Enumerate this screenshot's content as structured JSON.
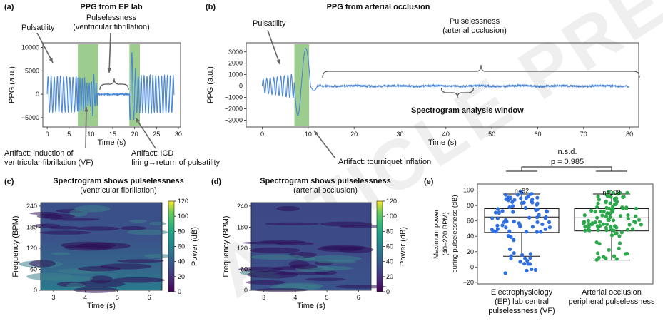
{
  "panel_a": {
    "letter": "(a)",
    "title": "PPG from EP lab",
    "annotation_pulsatility": "Pulsatility",
    "annotation_pulselessness_l1": "Pulselessness",
    "annotation_pulselessness_l2": "(ventricular fibrillation)",
    "artifact_vf_l1": "Artifact: induction of",
    "artifact_vf_l2": "ventricular fibrillation (VF)",
    "artifact_icd_l1": "Artifact: ICD",
    "artifact_icd_l2": "firing→return of pulsatility",
    "chart_data": {
      "type": "line",
      "xlabel": "Time (s)",
      "ylabel": "PPG (a.u.)",
      "xticks": [
        "0",
        "5",
        "10",
        "15",
        "20",
        "25",
        "30"
      ],
      "yticks": [
        "10000",
        "5000",
        "0",
        "−5000"
      ],
      "xlim": [
        -1,
        30.5
      ],
      "ylim": [
        -7000,
        11000
      ],
      "highlight_regions": [
        [
          7,
          11.7
        ],
        [
          18.8,
          21.2
        ]
      ]
    }
  },
  "panel_b": {
    "letter": "(b)",
    "title": "PPG from arterial occlusion",
    "annotation_pulsatility": "Pulsatility",
    "annotation_pulselessness_l1": "Pulselessness",
    "annotation_pulselessness_l2": "(arterial occlusion)",
    "spectrogram_window": "Spectrogram analysis window",
    "artifact_tourniquet": "Artifact: tourniquet inflation",
    "chart_data": {
      "type": "line",
      "xlabel": "Time (s)",
      "ylabel": "PPG (a.u.)",
      "xticks": [
        "0",
        "10",
        "20",
        "30",
        "40",
        "50",
        "60",
        "70",
        "80"
      ],
      "yticks": [
        "3000",
        "2000",
        "1000",
        "0",
        "−1000",
        "−2000",
        "−3000"
      ],
      "xlim": [
        -3.5,
        82
      ],
      "ylim": [
        -3600,
        3800
      ],
      "highlight_regions": [
        [
          7,
          10.2
        ]
      ]
    }
  },
  "panel_c": {
    "letter": "(c)",
    "title": "Spectrogram shows pulselessness",
    "subtitle": "(ventricular fibrillation)",
    "chart_data": {
      "type": "heatmap",
      "xlabel": "Time (s)",
      "ylabel": "Frequency (BPM)",
      "xticks": [
        "3",
        "4",
        "5",
        "6"
      ],
      "yticks": [
        "240",
        "180",
        "120",
        "60",
        "0"
      ],
      "xlim": [
        2.6,
        6.4
      ],
      "ylim": [
        0,
        250
      ],
      "colorbar_label": "Power (dB)",
      "colorbar_ticks": [
        "120",
        "100",
        "80",
        "60",
        "40",
        "20",
        "0"
      ]
    }
  },
  "panel_d": {
    "letter": "(d)",
    "title": "Spectrogram shows pulselessness",
    "subtitle": "(arterial occlusion)",
    "chart_data": {
      "type": "heatmap",
      "xlabel": "Time (s)",
      "ylabel": "Frequency (BPM)",
      "xticks": [
        "3",
        "4",
        "5",
        "6"
      ],
      "yticks": [
        "240",
        "180",
        "120",
        "60",
        "0"
      ],
      "xlim": [
        2.6,
        6.4
      ],
      "ylim": [
        0,
        250
      ],
      "colorbar_label": "Power (dB)",
      "colorbar_ticks": [
        "120",
        "100",
        "80",
        "60",
        "40",
        "20",
        "0"
      ]
    }
  },
  "panel_e": {
    "letter": "(e)",
    "nsd": "n.s.d.",
    "pvalue": "p = 0.985",
    "chart_data": {
      "type": "scatter",
      "ylabel_l1": "Maximum power",
      "ylabel_l2": "(40–220 BPM)",
      "ylabel_l3": "during pulselessness (dB)",
      "yticks": [
        "100",
        "80",
        "60",
        "40",
        "20",
        "0",
        "−20"
      ],
      "ylim": [
        -22,
        108
      ],
      "groups": [
        {
          "n_label": "n=92",
          "label_l1": "Electrophysiology",
          "label_l2": "(EP) lab central",
          "label_l3": "pulselessness (VF)",
          "color": "#2f6fe0",
          "n": 92,
          "whisker_low": 14,
          "q1": 45,
          "median": 65,
          "q3": 76,
          "whisker_high": 95,
          "min": -10,
          "max": 100
        },
        {
          "n_label": "n=108",
          "label_l1": "Arterial occlusion",
          "label_l2": "peripheral pulselessness",
          "label_l3": "",
          "color": "#2aa84a",
          "n": 108,
          "whisker_low": 9,
          "q1": 47,
          "median": 64,
          "q3": 76,
          "whisker_high": 95,
          "min": 9,
          "max": 98
        }
      ]
    }
  },
  "colors": {
    "signal": "#4a86d8",
    "highlight": "#8cc47a",
    "colorbar_top": "#fde725",
    "colorbar_bottom": "#440154"
  }
}
